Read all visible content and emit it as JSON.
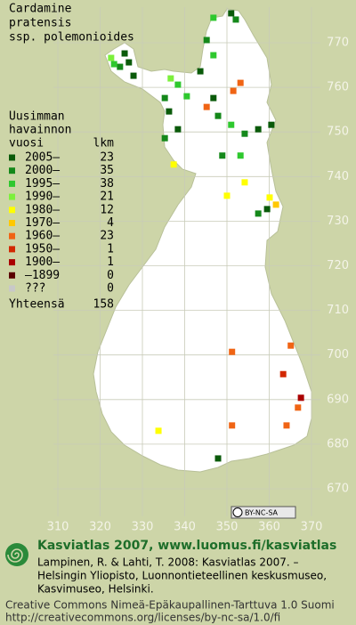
{
  "title": [
    "Cardamine",
    "pratensis",
    "ssp. polemonioides"
  ],
  "legend": {
    "heading": [
      "Uusimman",
      "havainnon",
      "vuosi"
    ],
    "count_heading": "lkm",
    "rows": [
      {
        "label": "2005–",
        "count": "23",
        "color": "#0a5a0a"
      },
      {
        "label": "2000–",
        "count": "35",
        "color": "#14881a"
      },
      {
        "label": "1995–",
        "count": "38",
        "color": "#2ec82e"
      },
      {
        "label": "1990–",
        "count": "21",
        "color": "#7cf03c"
      },
      {
        "label": "1980–",
        "count": "12",
        "color": "#ffff00"
      },
      {
        "label": "1970–",
        "count": "4",
        "color": "#ffc800"
      },
      {
        "label": "1960–",
        "count": "23",
        "color": "#f06414"
      },
      {
        "label": "1950–",
        "count": "1",
        "color": "#d22800"
      },
      {
        "label": "1900–",
        "count": "1",
        "color": "#aa0000"
      },
      {
        "label": "–1899",
        "count": "0",
        "color": "#5a0000"
      },
      {
        "label": "???",
        "count": "0",
        "color": "#c8c8c8"
      }
    ],
    "total_label": "Yhteensä",
    "total": "158"
  },
  "grid": {
    "xticks": [
      310,
      320,
      330,
      340,
      350,
      360,
      370
    ],
    "yticks": [
      770,
      760,
      750,
      740,
      730,
      720,
      710,
      700,
      690,
      680,
      670
    ]
  },
  "markers": [
    [
      325.8,
      767.6,
      0
    ],
    [
      326.8,
      765.6,
      0
    ],
    [
      324.7,
      764.6,
      1
    ],
    [
      327.9,
      762.6,
      0
    ],
    [
      322.6,
      766.6,
      3
    ],
    [
      323.3,
      765.2,
      2
    ],
    [
      351.0,
      776.6,
      0
    ],
    [
      352.1,
      775.2,
      1
    ],
    [
      346.8,
      775.6,
      2
    ],
    [
      345.2,
      770.6,
      1
    ],
    [
      346.8,
      767.2,
      2
    ],
    [
      343.7,
      763.6,
      0
    ],
    [
      336.7,
      762.0,
      3
    ],
    [
      338.4,
      760.6,
      2
    ],
    [
      335.3,
      757.6,
      1
    ],
    [
      336.3,
      754.6,
      0
    ],
    [
      340.5,
      758.0,
      2
    ],
    [
      346.8,
      757.6,
      0
    ],
    [
      351.5,
      759.2,
      6
    ],
    [
      353.2,
      761.0,
      6
    ],
    [
      345.2,
      755.6,
      6
    ],
    [
      347.9,
      753.6,
      1
    ],
    [
      351.0,
      751.6,
      2
    ],
    [
      354.2,
      749.6,
      1
    ],
    [
      357.4,
      750.6,
      0
    ],
    [
      360.5,
      751.6,
      0
    ],
    [
      338.4,
      750.6,
      0
    ],
    [
      335.3,
      748.6,
      1
    ],
    [
      337.4,
      742.7,
      4
    ],
    [
      348.9,
      744.7,
      1
    ],
    [
      353.2,
      744.7,
      2
    ],
    [
      350.0,
      735.7,
      4
    ],
    [
      354.2,
      738.7,
      4
    ],
    [
      357.4,
      731.7,
      1
    ],
    [
      360.1,
      735.3,
      4
    ],
    [
      359.5,
      732.7,
      0
    ],
    [
      361.6,
      733.7,
      5
    ],
    [
      365.1,
      702.1,
      6
    ],
    [
      351.2,
      700.7,
      6
    ],
    [
      363.3,
      695.7,
      7
    ],
    [
      367.5,
      690.4,
      8
    ],
    [
      366.8,
      688.2,
      6
    ],
    [
      351.2,
      684.2,
      6
    ],
    [
      364.1,
      684.2,
      6
    ],
    [
      347.9,
      676.8,
      0
    ],
    [
      333.8,
      683.0,
      4
    ]
  ],
  "badge": "BY-NC-SA",
  "footer": {
    "headline": "Kasviatlas 2007, www.luomus.fi/kasviatlas",
    "citation": [
      "Lampinen, R. & Lahti, T. 2008: Kasviatlas 2007. –",
      "Helsingin Yliopisto, Luonnontieteellinen keskusmuseo,",
      "Kasvimuseo, Helsinki."
    ],
    "license": [
      "Creative Commons Nimeä-Epäkaupallinen-Tarttuva 1.0 Suomi",
      "http://creativecommons.org/licenses/by-nc-sa/1.0/fi"
    ]
  }
}
